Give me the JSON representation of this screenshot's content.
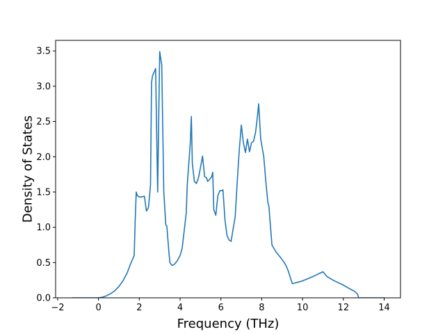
{
  "chart_data": {
    "type": "line",
    "title": "",
    "xlabel": "Frequency (THz)",
    "ylabel": "Density of States",
    "xlim": [
      -2.1,
      14.8
    ],
    "ylim": [
      0,
      3.65
    ],
    "x_ticks": [
      -2,
      0,
      2,
      4,
      6,
      8,
      10,
      12,
      14
    ],
    "x_tick_labels": [
      "−2",
      "0",
      "2",
      "4",
      "6",
      "8",
      "10",
      "12",
      "14"
    ],
    "y_ticks": [
      0,
      0.5,
      1.0,
      1.5,
      2.0,
      2.5,
      3.0,
      3.5
    ],
    "y_tick_labels": [
      "0.0",
      "0.5",
      "1.0",
      "1.5",
      "2.0",
      "2.5",
      "3.0",
      "3.5"
    ],
    "grid": false,
    "line_color": "#1f77b4",
    "series": [
      {
        "x": [
          -1.3,
          -0.5,
          0.0,
          0.2,
          0.4,
          0.6,
          0.8,
          1.0,
          1.2,
          1.4,
          1.6,
          1.75,
          1.8,
          1.85,
          1.9,
          2.0,
          2.1,
          2.25,
          2.35,
          2.45,
          2.55,
          2.6,
          2.65,
          2.8,
          2.9,
          3.0,
          3.1,
          3.2,
          3.3,
          3.35,
          3.45,
          3.5,
          3.6,
          3.7,
          3.85,
          4.0,
          4.1,
          4.2,
          4.3,
          4.35,
          4.45,
          4.5,
          4.55,
          4.6,
          4.7,
          4.8,
          4.9,
          5.0,
          5.1,
          5.2,
          5.3,
          5.35,
          5.45,
          5.55,
          5.6,
          5.65,
          5.75,
          5.85,
          5.95,
          6.05,
          6.1,
          6.2,
          6.3,
          6.4,
          6.5,
          6.6,
          6.7,
          6.8,
          6.9,
          7.0,
          7.1,
          7.2,
          7.3,
          7.4,
          7.5,
          7.6,
          7.7,
          7.8,
          7.85,
          7.95,
          8.1,
          8.2,
          8.3,
          8.35,
          8.5,
          8.7,
          8.9,
          9.1,
          9.2,
          9.3,
          9.5,
          10.0,
          10.5,
          11.0,
          11.2,
          11.5,
          12.0,
          12.3,
          12.5,
          12.6,
          12.7,
          12.75,
          13.0,
          14.0
        ],
        "y": [
          0.0,
          0.0,
          0.0,
          0.01,
          0.03,
          0.06,
          0.1,
          0.16,
          0.24,
          0.35,
          0.5,
          0.6,
          1.1,
          1.5,
          1.45,
          1.43,
          1.43,
          1.44,
          1.23,
          1.28,
          1.6,
          3.05,
          3.15,
          3.25,
          1.5,
          3.49,
          3.3,
          1.5,
          1.03,
          1.02,
          0.65,
          0.5,
          0.46,
          0.47,
          0.52,
          0.6,
          0.7,
          0.95,
          1.2,
          1.6,
          2.0,
          2.2,
          2.57,
          1.9,
          1.65,
          1.62,
          1.7,
          1.85,
          2.01,
          1.72,
          1.7,
          1.65,
          1.68,
          1.72,
          1.78,
          1.25,
          1.17,
          1.45,
          1.52,
          1.52,
          1.53,
          1.1,
          0.88,
          0.82,
          0.8,
          0.98,
          1.15,
          1.65,
          2.1,
          2.45,
          2.2,
          2.06,
          2.25,
          2.07,
          2.2,
          2.22,
          2.35,
          2.6,
          2.75,
          2.25,
          2.0,
          1.65,
          1.35,
          1.3,
          0.75,
          0.65,
          0.58,
          0.5,
          0.45,
          0.38,
          0.2,
          0.24,
          0.3,
          0.37,
          0.3,
          0.25,
          0.18,
          0.13,
          0.1,
          0.08,
          0.05,
          0.0,
          0.0,
          0.0
        ]
      }
    ]
  }
}
